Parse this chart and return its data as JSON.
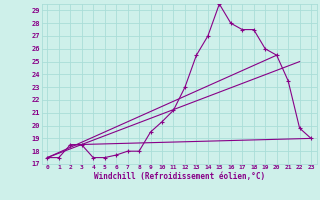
{
  "xlabel": "Windchill (Refroidissement éolien,°C)",
  "background_color": "#cef0ea",
  "grid_color": "#aaddd8",
  "line_color": "#880088",
  "xlim": [
    -0.5,
    23.5
  ],
  "ylim": [
    17,
    29.5
  ],
  "yticks": [
    17,
    18,
    19,
    20,
    21,
    22,
    23,
    24,
    25,
    26,
    27,
    28,
    29
  ],
  "xticks": [
    0,
    1,
    2,
    3,
    4,
    5,
    6,
    7,
    8,
    9,
    10,
    11,
    12,
    13,
    14,
    15,
    16,
    17,
    18,
    19,
    20,
    21,
    22,
    23
  ],
  "line1_x": [
    0,
    1,
    2,
    3,
    4,
    5,
    6,
    7,
    8,
    9,
    10,
    11,
    12,
    13,
    14,
    15,
    16,
    17,
    18,
    19,
    20,
    21,
    22,
    23
  ],
  "line1_y": [
    17.5,
    17.5,
    18.5,
    18.5,
    17.5,
    17.5,
    17.7,
    18.0,
    18.0,
    19.5,
    20.3,
    21.2,
    23.0,
    25.5,
    27.0,
    29.5,
    28.0,
    27.5,
    27.5,
    26.0,
    25.5,
    23.5,
    19.8,
    19.0
  ],
  "line2_x": [
    0,
    20
  ],
  "line2_y": [
    17.5,
    25.5
  ],
  "line3_x": [
    0,
    22
  ],
  "line3_y": [
    17.5,
    25.0
  ],
  "line4_x": [
    2,
    23
  ],
  "line4_y": [
    18.5,
    19.0
  ]
}
